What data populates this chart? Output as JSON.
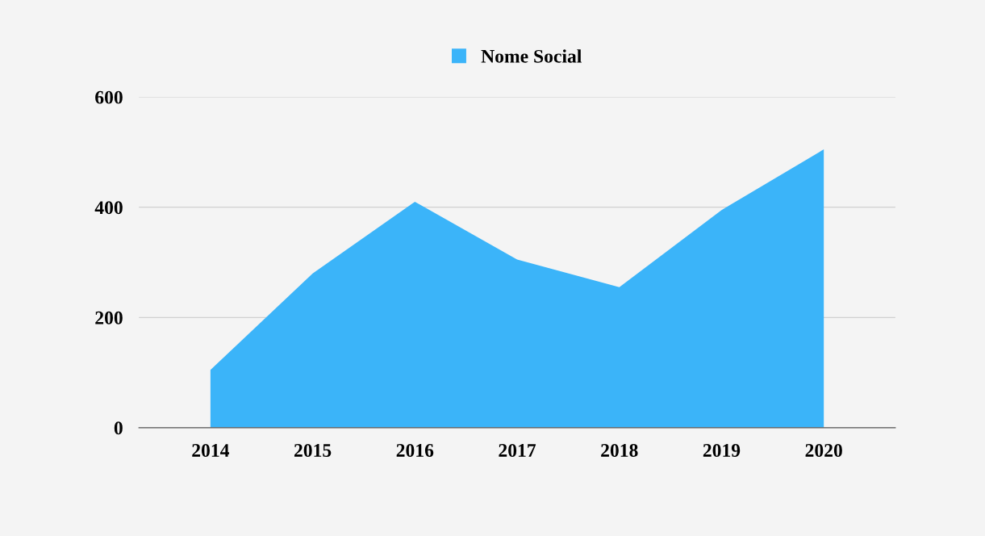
{
  "chart_data": {
    "type": "area",
    "categories": [
      "2014",
      "2015",
      "2016",
      "2017",
      "2018",
      "2019",
      "2020"
    ],
    "series": [
      {
        "name": "Nome Social",
        "color": "#3bb4f9",
        "values": [
          105,
          280,
          410,
          305,
          255,
          395,
          505
        ]
      }
    ],
    "ylim": [
      0,
      600
    ],
    "yticks": [
      0,
      200,
      400,
      600
    ],
    "grid": "y",
    "legend": "top"
  }
}
